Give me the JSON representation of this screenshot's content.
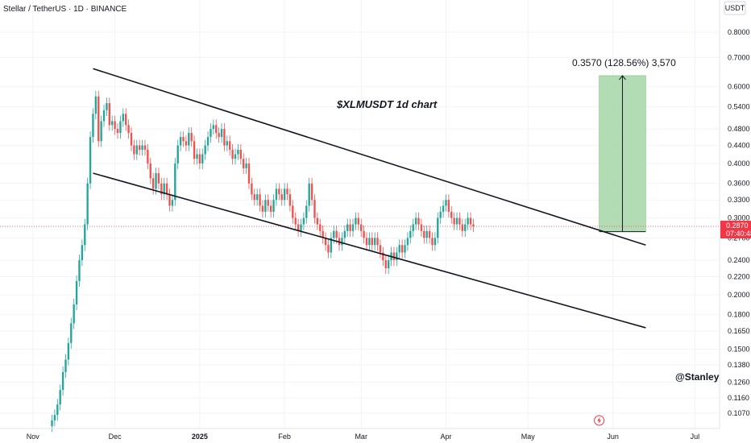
{
  "header": {
    "symbol": "Stellar / TetherUS · 1D · BINANCE"
  },
  "axis": {
    "currency": "USDT"
  },
  "colors": {
    "up": "#26a69a",
    "down": "#ef5350",
    "accent": "#f23645",
    "target_fill": "#a5d6a7",
    "grid": "#f0f3fa"
  },
  "annotations": {
    "title": "$XLMUSDT 1d chart",
    "measure": "0.3570 (128.56%) 3,570",
    "handle": "@Stanleycryp"
  },
  "current_price": {
    "price": "0.2870",
    "countdown": "07:40:48"
  },
  "icons": {
    "event": "lightning-icon"
  },
  "chart_data": {
    "type": "candlestick",
    "scale": "log",
    "ylim": [
      0.1,
      0.85
    ],
    "y_ticks": [
      0.8,
      0.7,
      0.6,
      0.54,
      0.48,
      0.44,
      0.4,
      0.36,
      0.33,
      0.3,
      0.27,
      0.24,
      0.22,
      0.2,
      0.18,
      0.165,
      0.15,
      0.138,
      0.126,
      0.116,
      0.107
    ],
    "y_tick_labels": [
      "0.8000",
      "0.7000",
      "0.6000",
      "0.5400",
      "0.4800",
      "0.4400",
      "0.4000",
      "0.3600",
      "0.3300",
      "0.3000",
      "0.2700",
      "0.2400",
      "0.2200",
      "0.2000",
      "0.1800",
      "0.1650",
      "0.1500",
      "0.1380",
      "0.1260",
      "0.1160",
      "0.1070"
    ],
    "x_range": [
      "2024-10-20",
      "2025-07-10"
    ],
    "x_ticks": [
      {
        "date": "2024-11-01",
        "label": "Nov"
      },
      {
        "date": "2024-12-01",
        "label": "Dec"
      },
      {
        "date": "2025-01-01",
        "label": "2025"
      },
      {
        "date": "2025-02-01",
        "label": "Feb"
      },
      {
        "date": "2025-03-01",
        "label": "Mar"
      },
      {
        "date": "2025-04-01",
        "label": "Apr"
      },
      {
        "date": "2025-05-01",
        "label": "May"
      },
      {
        "date": "2025-06-01",
        "label": "Jun"
      },
      {
        "date": "2025-07-01",
        "label": "Jul"
      }
    ],
    "candles_start": "2024-11-08",
    "closes": [
      0.103,
      0.106,
      0.112,
      0.121,
      0.133,
      0.142,
      0.155,
      0.172,
      0.19,
      0.215,
      0.24,
      0.26,
      0.29,
      0.36,
      0.46,
      0.52,
      0.57,
      0.45,
      0.5,
      0.53,
      0.55,
      0.49,
      0.5,
      0.48,
      0.47,
      0.5,
      0.52,
      0.49,
      0.47,
      0.44,
      0.42,
      0.44,
      0.43,
      0.44,
      0.43,
      0.4,
      0.37,
      0.35,
      0.38,
      0.36,
      0.34,
      0.36,
      0.34,
      0.32,
      0.33,
      0.4,
      0.44,
      0.46,
      0.45,
      0.44,
      0.47,
      0.45,
      0.41,
      0.42,
      0.4,
      0.42,
      0.44,
      0.46,
      0.48,
      0.49,
      0.47,
      0.46,
      0.48,
      0.44,
      0.45,
      0.43,
      0.41,
      0.42,
      0.43,
      0.41,
      0.39,
      0.4,
      0.36,
      0.34,
      0.33,
      0.34,
      0.32,
      0.31,
      0.33,
      0.32,
      0.31,
      0.33,
      0.35,
      0.34,
      0.33,
      0.35,
      0.34,
      0.32,
      0.3,
      0.29,
      0.28,
      0.29,
      0.3,
      0.32,
      0.36,
      0.33,
      0.3,
      0.29,
      0.28,
      0.27,
      0.26,
      0.25,
      0.27,
      0.28,
      0.27,
      0.26,
      0.27,
      0.28,
      0.29,
      0.28,
      0.29,
      0.3,
      0.29,
      0.28,
      0.27,
      0.26,
      0.27,
      0.26,
      0.27,
      0.26,
      0.25,
      0.24,
      0.23,
      0.24,
      0.25,
      0.24,
      0.25,
      0.26,
      0.25,
      0.26,
      0.27,
      0.28,
      0.29,
      0.3,
      0.29,
      0.28,
      0.27,
      0.28,
      0.27,
      0.26,
      0.27,
      0.3,
      0.31,
      0.32,
      0.33,
      0.31,
      0.3,
      0.29,
      0.3,
      0.29,
      0.28,
      0.29,
      0.3,
      0.29,
      0.287
    ],
    "channel": {
      "upper": [
        {
          "date": "2024-11-23",
          "value": 0.66
        },
        {
          "date": "2025-06-13",
          "value": 0.26
        }
      ],
      "lower": [
        {
          "date": "2024-11-23",
          "value": 0.38
        },
        {
          "date": "2025-06-13",
          "value": 0.168
        }
      ]
    },
    "target_box": {
      "from": "2025-05-27",
      "to": "2025-06-13",
      "low": 0.279,
      "high": 0.636
    },
    "measure": {
      "value": 0.357,
      "percent": 128.56,
      "ticks": 3570
    }
  }
}
